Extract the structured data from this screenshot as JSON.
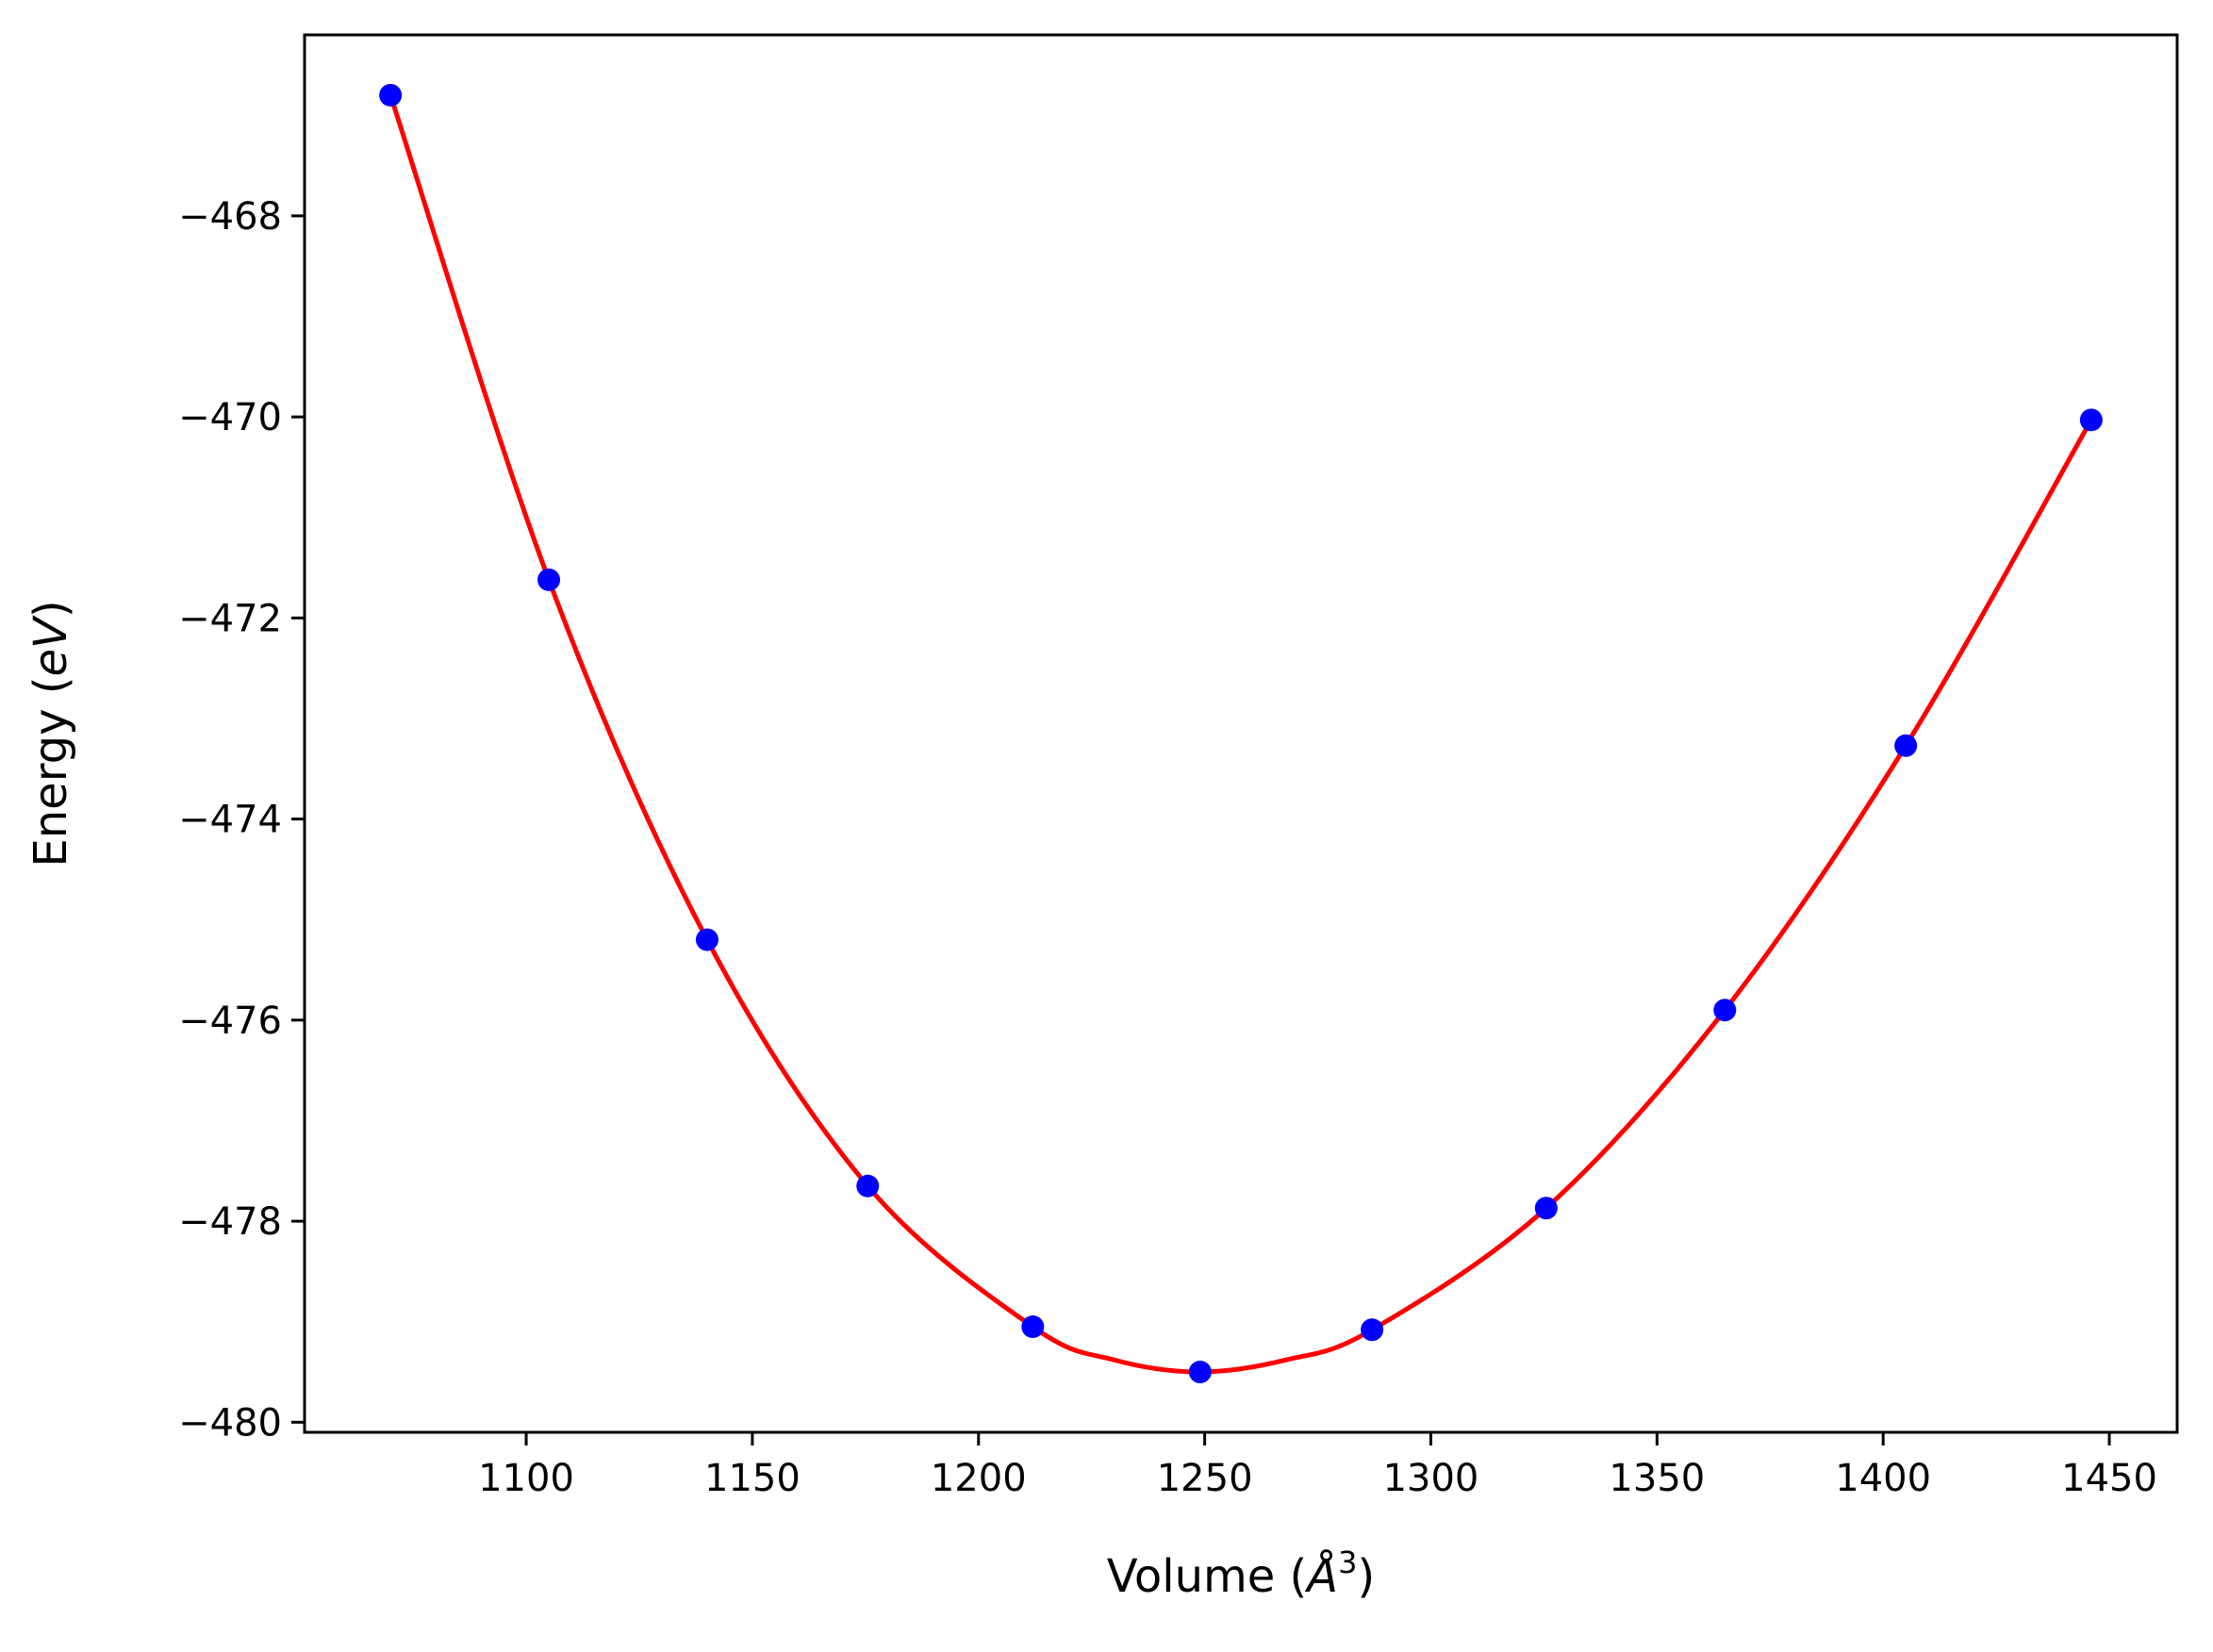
{
  "chart_data": {
    "type": "scatter",
    "title": "",
    "xlabel": "Volume (Å³)",
    "xlabel_parts": {
      "prefix": "Volume (",
      "symbol": "Å",
      "superscript": "3",
      "suffix": ")"
    },
    "ylabel": "Energy (eV)",
    "ylabel_parts": {
      "prefix": "Energy (",
      "italic": "eV",
      "suffix": ")"
    },
    "xlim": [
      1051,
      1465
    ],
    "ylim": [
      -480.1,
      -466.2
    ],
    "xticks": [
      1100,
      1150,
      1200,
      1250,
      1300,
      1350,
      1400,
      1450
    ],
    "yticks": [
      -468,
      -470,
      -472,
      -474,
      -476,
      -478,
      -480
    ],
    "grid": false,
    "legend": "none",
    "series": [
      {
        "kind": "points",
        "color": "#0000ff",
        "x": [
          1070,
          1105,
          1140,
          1175.5,
          1212,
          1249,
          1287,
          1325.5,
          1365,
          1405,
          1446
        ],
        "y": [
          -466.8,
          -471.62,
          -475.2,
          -477.65,
          -479.05,
          -479.5,
          -479.08,
          -477.87,
          -475.9,
          -473.27,
          -470.03
        ]
      },
      {
        "kind": "fit-curve",
        "color": "#ff0000",
        "x": [
          1070,
          1105,
          1140,
          1175.5,
          1212,
          1230,
          1249,
          1268,
          1287,
          1325.5,
          1365,
          1405,
          1446
        ],
        "y": [
          -466.8,
          -471.62,
          -475.2,
          -477.65,
          -479.05,
          -479.38,
          -479.5,
          -479.38,
          -479.08,
          -477.87,
          -475.9,
          -473.27,
          -470.03
        ]
      }
    ]
  }
}
